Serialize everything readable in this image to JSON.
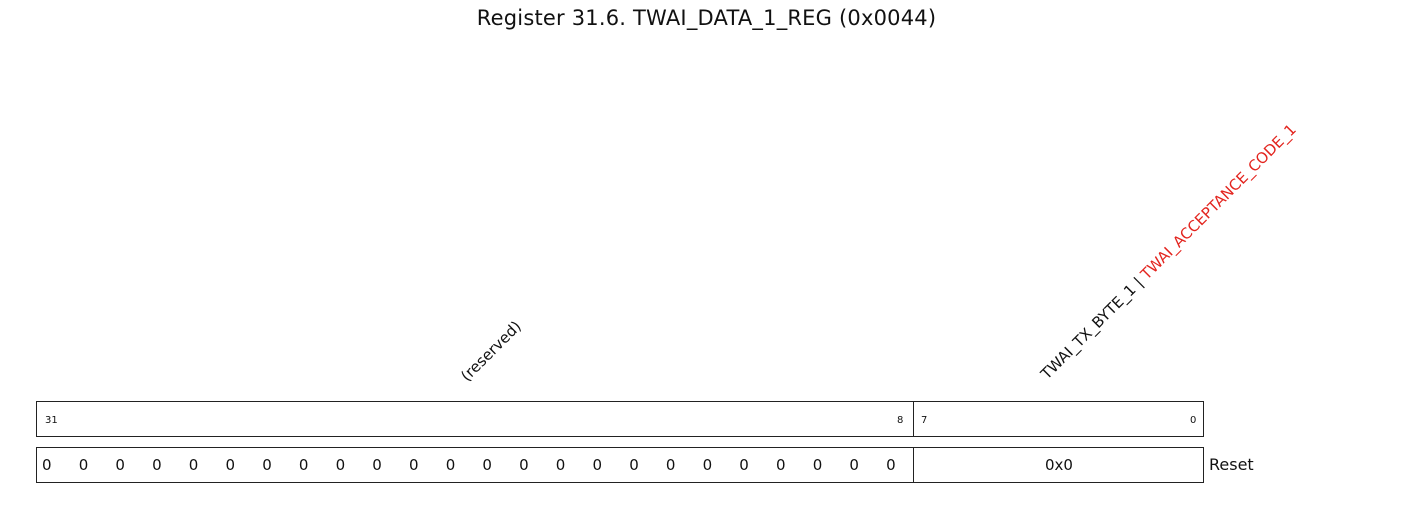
{
  "title": "Register 31.6. TWAI_DATA_1_REG (0x0044)",
  "fields": {
    "reserved": "(reserved)",
    "tx_byte": "TWAI_TX_BYTE_1",
    "separator": " | ",
    "acceptance_code": "TWAI_ACCEPTANCE_CODE_1"
  },
  "bit_numbers": {
    "msb": "31",
    "reserved_lsb": "8",
    "field_msb": "7",
    "field_lsb": "0"
  },
  "reset_values": {
    "reserved_bits": [
      "0",
      "0",
      "0",
      "0",
      "0",
      "0",
      "0",
      "0",
      "0",
      "0",
      "0",
      "0",
      "0",
      "0",
      "0",
      "0",
      "0",
      "0",
      "0",
      "0",
      "0",
      "0",
      "0",
      "0"
    ],
    "tx_byte": "0x0"
  },
  "reset_label": "Reset",
  "colors": {
    "alternate_name": "#e3241e"
  }
}
